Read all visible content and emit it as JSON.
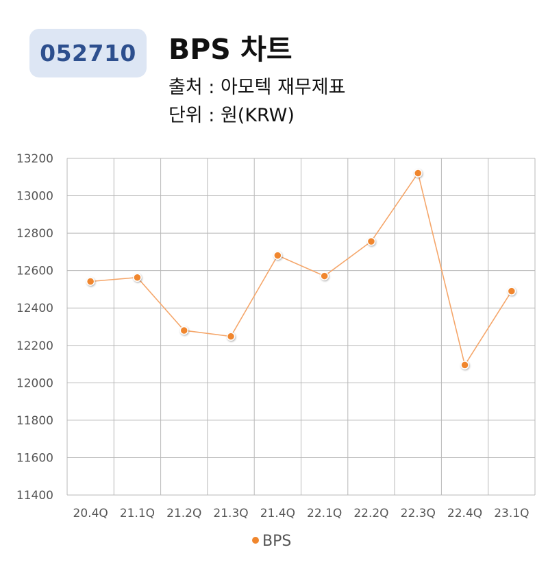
{
  "header": {
    "code": "052710",
    "title": "BPS 차트",
    "source": "출처 : 아모텍 재무제표",
    "unit": "단위 : 원(KRW)"
  },
  "colors": {
    "badge_bg": "#dde6f4",
    "badge_text": "#2d4f8e",
    "series": "#f0862d",
    "line": "#f5a66a",
    "grid": "#b8b8b8"
  },
  "chart_data": {
    "type": "line",
    "title": "",
    "xlabel": "",
    "ylabel": "",
    "categories": [
      "20.4Q",
      "21.1Q",
      "21.2Q",
      "21.3Q",
      "21.4Q",
      "22.1Q",
      "22.2Q",
      "22.3Q",
      "22.4Q",
      "23.1Q"
    ],
    "ylim": [
      11400,
      13200
    ],
    "yticks": [
      11400,
      11600,
      11800,
      12000,
      12200,
      12400,
      12600,
      12800,
      13000,
      13200
    ],
    "series": [
      {
        "name": "BPS",
        "values": [
          12542,
          12563,
          12280,
          12248,
          12681,
          12571,
          12756,
          13121,
          12095,
          12490
        ]
      }
    ],
    "grid": true,
    "legend": "bottom"
  }
}
